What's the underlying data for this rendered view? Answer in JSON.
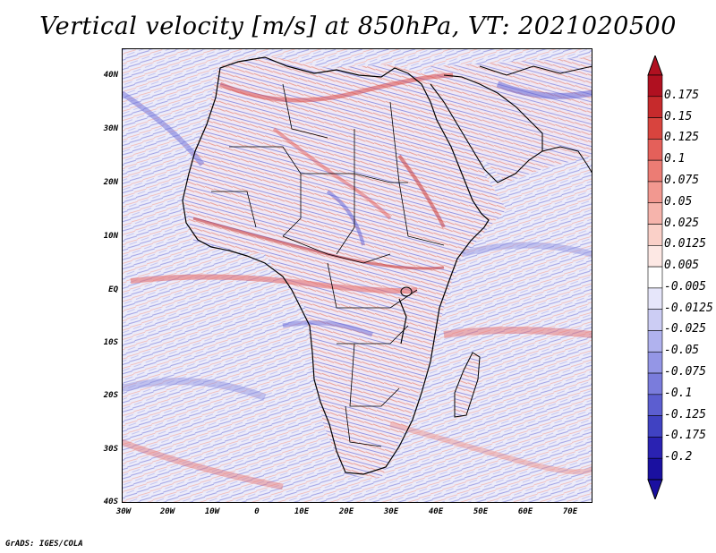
{
  "title": "Vertical velocity [m/s] at 850hPa, VT: 2021020500",
  "credit": "GrADS: IGES/COLA",
  "map": {
    "lat_labels": [
      "40N",
      "30N",
      "20N",
      "10N",
      "EQ",
      "10S",
      "20S",
      "30S",
      "40S"
    ],
    "lon_labels": [
      "30W",
      "20W",
      "10W",
      "0",
      "10E",
      "20E",
      "30E",
      "40E",
      "50E",
      "60E",
      "70E"
    ],
    "lat_range": [
      -40,
      45
    ],
    "lon_range": [
      -30,
      75
    ],
    "field": "vertical velocity",
    "level": "850hPa",
    "valid_time": "2021020500"
  },
  "colorbar": {
    "labels": [
      "0.175",
      "0.15",
      "0.125",
      "0.1",
      "0.075",
      "0.05",
      "0.025",
      "0.0125",
      "0.005",
      "-0.005",
      "-0.0125",
      "-0.025",
      "-0.05",
      "-0.075",
      "-0.1",
      "-0.125",
      "-0.175",
      "-0.2"
    ],
    "colors": [
      "#b01020",
      "#c62a2c",
      "#d8443e",
      "#e4605a",
      "#ec7c74",
      "#f29890",
      "#f6b4ac",
      "#fad0c8",
      "#fde8e4",
      "#ffffff",
      "#e6e6fa",
      "#cccdf4",
      "#b0b2ee",
      "#9496e6",
      "#7a7cdc",
      "#5c5ed0",
      "#4042c2",
      "#2a22b2",
      "#1a10a0"
    ]
  },
  "colors": {
    "ocean_bg": "#e8e8f6",
    "coast": "#000000",
    "red": "#e05050",
    "blue": "#5a5ad2"
  }
}
